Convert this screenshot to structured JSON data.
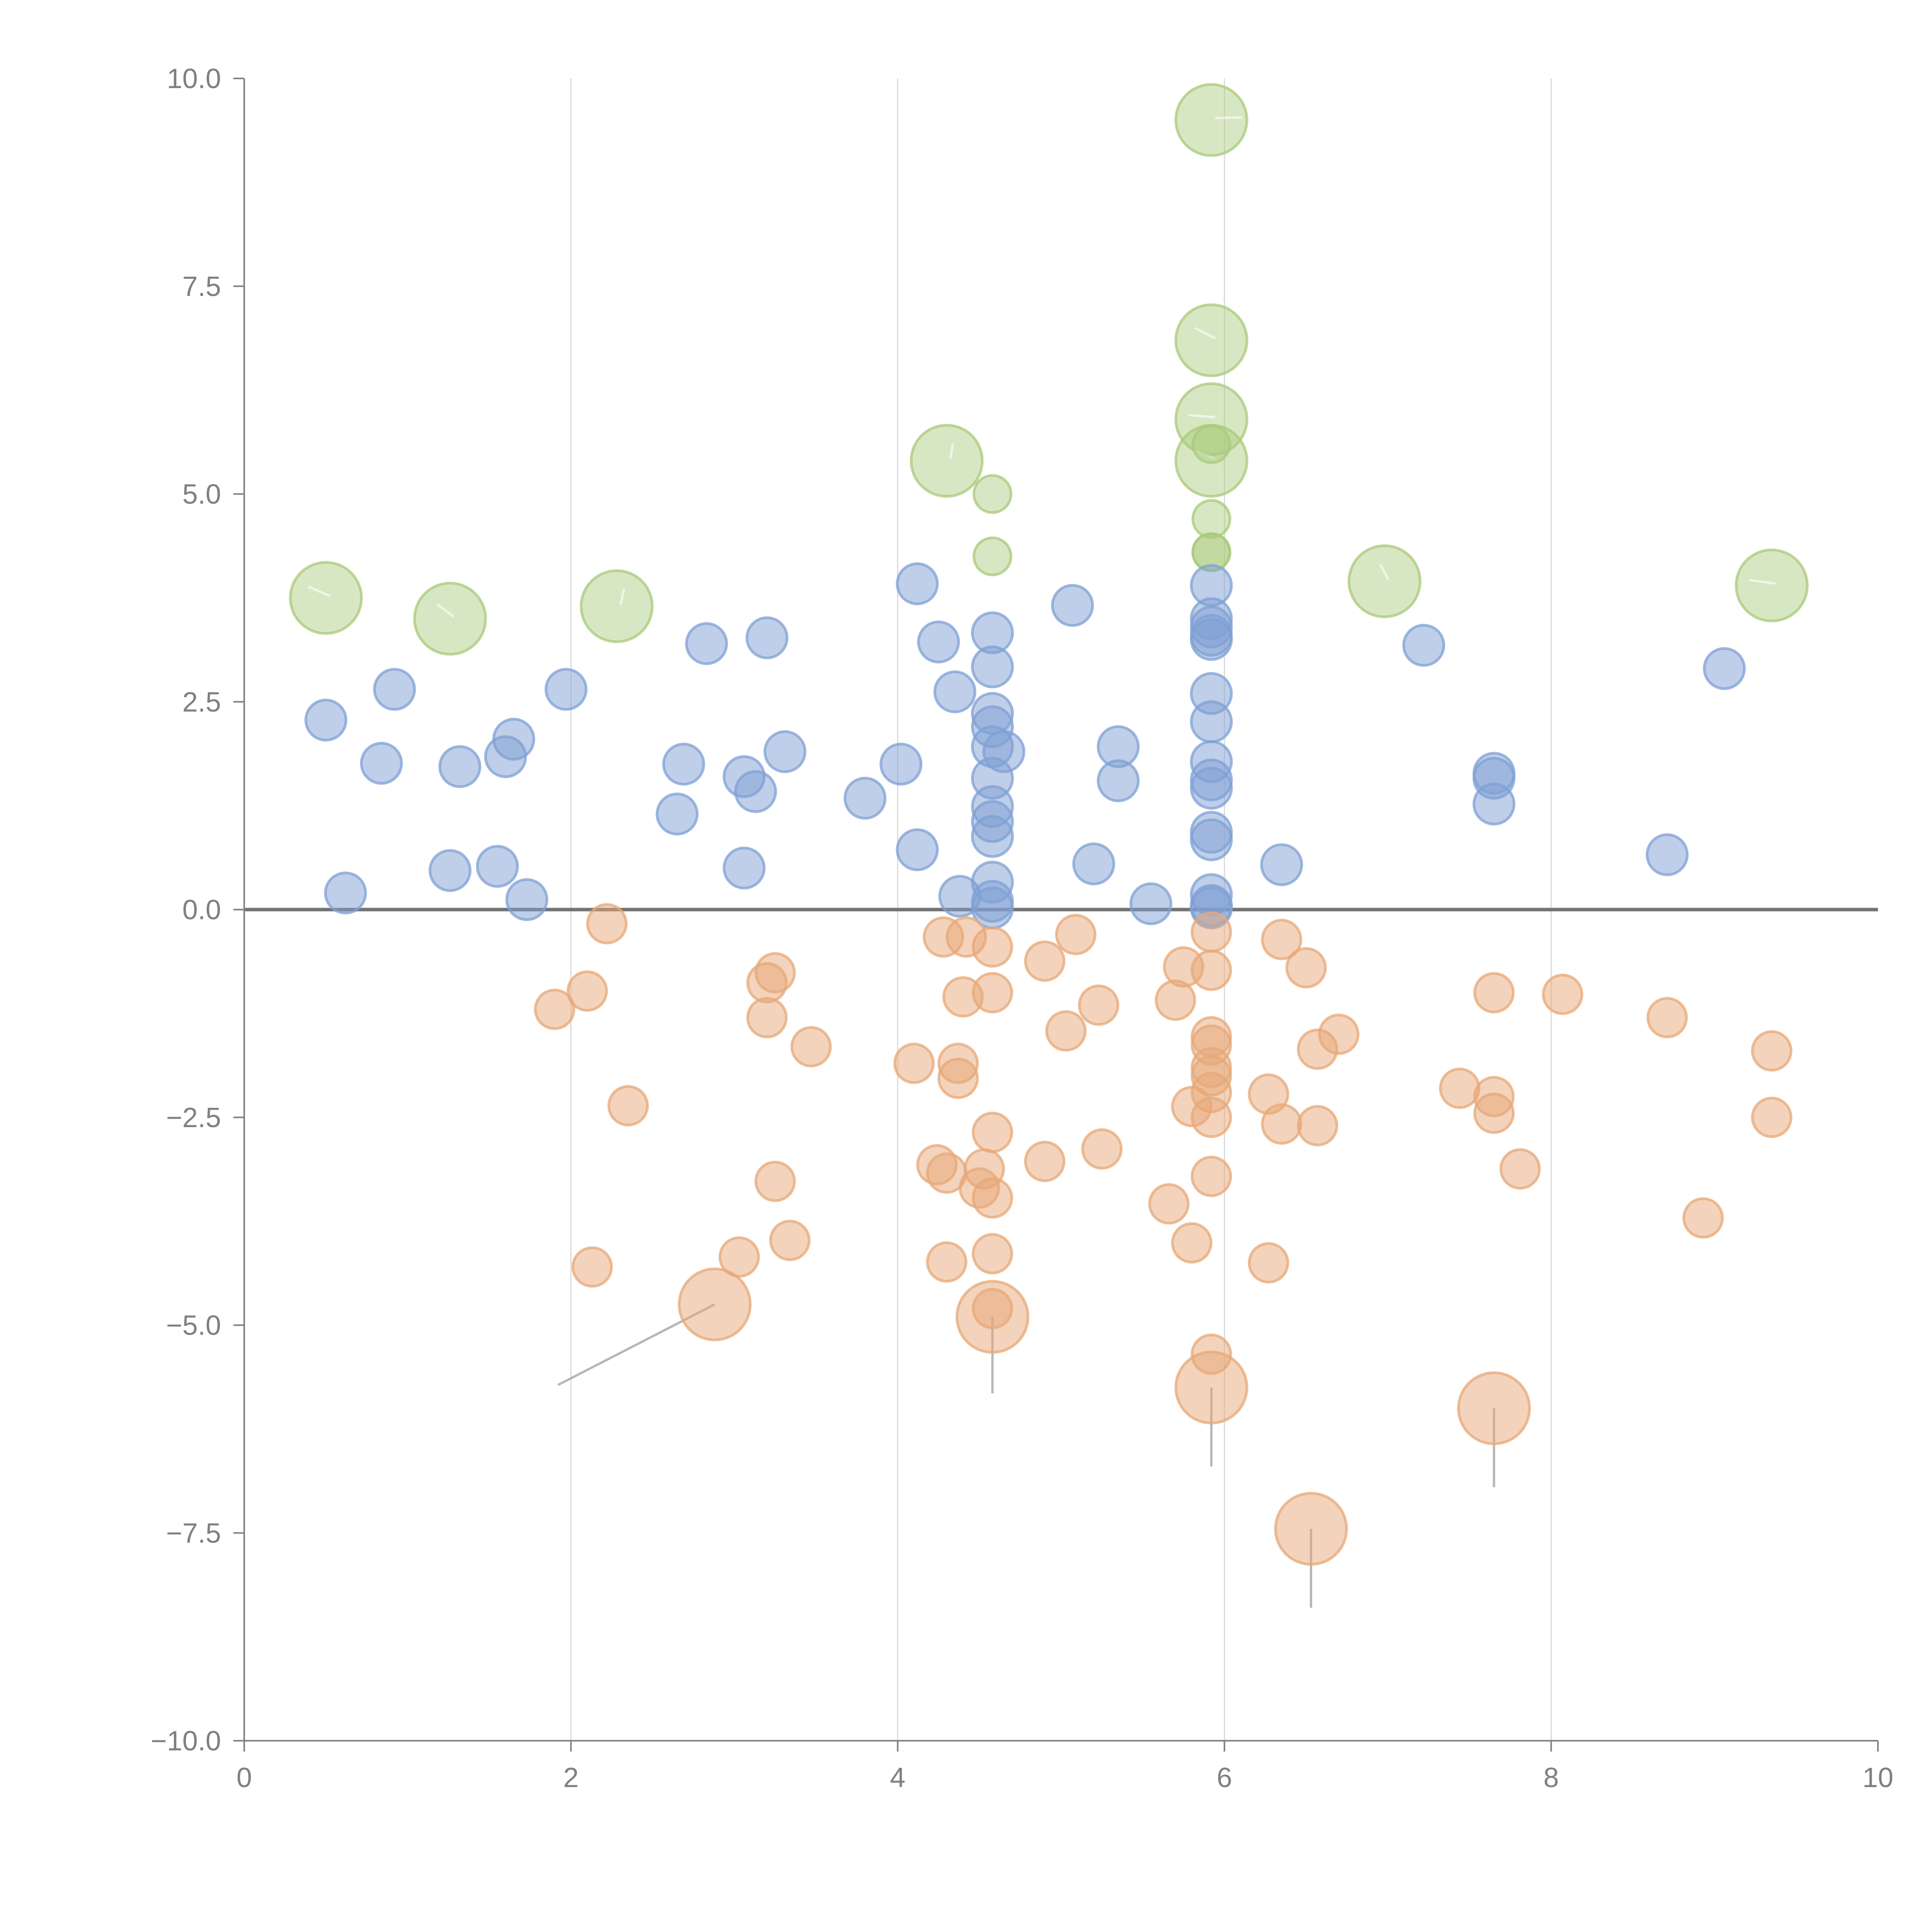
{
  "chart_data": {
    "type": "scatter",
    "title": "",
    "xlabel": "",
    "ylabel": "",
    "xlim": [
      0,
      10
    ],
    "ylim": [
      -10,
      10
    ],
    "x_ticks": [
      "0",
      "2",
      "4",
      "6",
      "8",
      "10"
    ],
    "y_ticks": [
      "10.0",
      "7.5",
      "5.0",
      "2.5",
      "0.0",
      "−2.5",
      "−5.0",
      "−7.5",
      "−10.0"
    ],
    "x_tick_values": [
      0,
      2,
      4,
      6,
      8,
      10
    ],
    "y_tick_values": [
      10,
      7.5,
      5,
      2.5,
      0,
      -2.5,
      -5,
      -7.5,
      -10
    ],
    "grid": "vertical",
    "legend": "none",
    "colors": {
      "green": "#a9c97a",
      "blue": "#7fa0d4",
      "orange": "#e7a877"
    },
    "series": [
      {
        "name": "green",
        "color": "#a9c97a",
        "points": [
          {
            "x": 0.5,
            "y": 3.75,
            "size": "large"
          },
          {
            "x": 1.26,
            "y": 3.5,
            "size": "large"
          },
          {
            "x": 2.28,
            "y": 3.65,
            "size": "large"
          },
          {
            "x": 4.3,
            "y": 5.4,
            "size": "large"
          },
          {
            "x": 5.92,
            "y": 9.5,
            "size": "large"
          },
          {
            "x": 5.92,
            "y": 6.85,
            "size": "large"
          },
          {
            "x": 5.92,
            "y": 5.9,
            "size": "large"
          },
          {
            "x": 5.92,
            "y": 5.4,
            "size": "large"
          },
          {
            "x": 6.98,
            "y": 3.95,
            "size": "large"
          },
          {
            "x": 9.35,
            "y": 3.9,
            "size": "large"
          },
          {
            "x": 4.58,
            "y": 5.0,
            "size": "small"
          },
          {
            "x": 4.58,
            "y": 4.25,
            "size": "small"
          },
          {
            "x": 5.92,
            "y": 5.6,
            "size": "small"
          },
          {
            "x": 5.92,
            "y": 4.7,
            "size": "small"
          },
          {
            "x": 5.92,
            "y": 4.3,
            "size": "small"
          },
          {
            "x": 5.92,
            "y": 4.3,
            "size": "small"
          }
        ]
      },
      {
        "name": "blue",
        "color": "#7fa0d4",
        "points": [
          {
            "x": 0.5,
            "y": 2.28
          },
          {
            "x": 0.62,
            "y": 0.2
          },
          {
            "x": 0.84,
            "y": 1.76
          },
          {
            "x": 0.92,
            "y": 2.65
          },
          {
            "x": 1.26,
            "y": 0.47
          },
          {
            "x": 1.32,
            "y": 1.72
          },
          {
            "x": 1.55,
            "y": 0.52
          },
          {
            "x": 1.6,
            "y": 1.84
          },
          {
            "x": 1.65,
            "y": 2.05
          },
          {
            "x": 1.73,
            "y": 0.12
          },
          {
            "x": 1.97,
            "y": 2.65
          },
          {
            "x": 2.65,
            "y": 1.15
          },
          {
            "x": 2.69,
            "y": 1.75
          },
          {
            "x": 2.83,
            "y": 3.2
          },
          {
            "x": 3.06,
            "y": 1.6
          },
          {
            "x": 3.06,
            "y": 0.5
          },
          {
            "x": 3.13,
            "y": 1.42
          },
          {
            "x": 3.2,
            "y": 3.27
          },
          {
            "x": 3.31,
            "y": 1.9
          },
          {
            "x": 3.8,
            "y": 1.34
          },
          {
            "x": 4.02,
            "y": 1.75
          },
          {
            "x": 4.12,
            "y": 3.92
          },
          {
            "x": 4.12,
            "y": 0.72
          },
          {
            "x": 4.25,
            "y": 3.22
          },
          {
            "x": 4.35,
            "y": 2.62
          },
          {
            "x": 4.38,
            "y": 0.16
          },
          {
            "x": 4.58,
            "y": 3.33
          },
          {
            "x": 4.58,
            "y": 2.92
          },
          {
            "x": 4.58,
            "y": 2.36
          },
          {
            "x": 4.58,
            "y": 2.2
          },
          {
            "x": 4.58,
            "y": 1.96
          },
          {
            "x": 4.65,
            "y": 1.9
          },
          {
            "x": 4.58,
            "y": 1.58
          },
          {
            "x": 4.58,
            "y": 1.24
          },
          {
            "x": 4.58,
            "y": 1.06
          },
          {
            "x": 4.58,
            "y": 0.88
          },
          {
            "x": 4.58,
            "y": 0.33
          },
          {
            "x": 4.58,
            "y": 0.1
          },
          {
            "x": 4.58,
            "y": 0.02
          },
          {
            "x": 5.07,
            "y": 3.66
          },
          {
            "x": 5.2,
            "y": 0.55
          },
          {
            "x": 5.35,
            "y": 1.96
          },
          {
            "x": 5.35,
            "y": 1.55
          },
          {
            "x": 5.55,
            "y": 0.07
          },
          {
            "x": 5.92,
            "y": 3.9
          },
          {
            "x": 5.92,
            "y": 3.5
          },
          {
            "x": 5.92,
            "y": 3.4
          },
          {
            "x": 5.92,
            "y": 3.3
          },
          {
            "x": 5.92,
            "y": 3.25
          },
          {
            "x": 5.92,
            "y": 2.6
          },
          {
            "x": 5.92,
            "y": 2.26
          },
          {
            "x": 5.92,
            "y": 1.78
          },
          {
            "x": 5.92,
            "y": 1.56
          },
          {
            "x": 5.92,
            "y": 1.46
          },
          {
            "x": 5.92,
            "y": 0.93
          },
          {
            "x": 5.92,
            "y": 0.84
          },
          {
            "x": 5.92,
            "y": 0.18
          },
          {
            "x": 5.92,
            "y": 0.05
          },
          {
            "x": 5.92,
            "y": 0.02
          },
          {
            "x": 6.35,
            "y": 0.54
          },
          {
            "x": 7.22,
            "y": 3.18
          },
          {
            "x": 7.65,
            "y": 1.64
          },
          {
            "x": 7.65,
            "y": 1.58
          },
          {
            "x": 7.65,
            "y": 1.27
          },
          {
            "x": 8.71,
            "y": 0.66
          },
          {
            "x": 9.06,
            "y": 2.9
          }
        ]
      },
      {
        "name": "orange",
        "color": "#e7a877",
        "points": [
          {
            "x": 1.9,
            "y": -1.2
          },
          {
            "x": 2.1,
            "y": -0.98
          },
          {
            "x": 2.13,
            "y": -4.3
          },
          {
            "x": 2.22,
            "y": -0.17
          },
          {
            "x": 2.35,
            "y": -2.36
          },
          {
            "x": 3.03,
            "y": -4.18
          },
          {
            "x": 3.2,
            "y": -0.88
          },
          {
            "x": 3.2,
            "y": -1.3
          },
          {
            "x": 3.25,
            "y": -0.76
          },
          {
            "x": 3.25,
            "y": -3.27
          },
          {
            "x": 3.34,
            "y": -3.98
          },
          {
            "x": 3.47,
            "y": -1.65
          },
          {
            "x": 4.1,
            "y": -1.85
          },
          {
            "x": 4.24,
            "y": -3.07
          },
          {
            "x": 4.28,
            "y": -0.33
          },
          {
            "x": 4.3,
            "y": -3.17
          },
          {
            "x": 4.3,
            "y": -4.24
          },
          {
            "x": 4.37,
            "y": -1.85
          },
          {
            "x": 4.37,
            "y": -2.03
          },
          {
            "x": 4.4,
            "y": -1.05
          },
          {
            "x": 4.42,
            "y": -0.33
          },
          {
            "x": 4.5,
            "y": -3.35
          },
          {
            "x": 4.53,
            "y": -3.12
          },
          {
            "x": 4.58,
            "y": -0.45
          },
          {
            "x": 4.58,
            "y": -1.0
          },
          {
            "x": 4.58,
            "y": -2.68
          },
          {
            "x": 4.58,
            "y": -3.47
          },
          {
            "x": 4.58,
            "y": -4.14
          },
          {
            "x": 4.58,
            "y": -4.8
          },
          {
            "x": 4.9,
            "y": -0.62
          },
          {
            "x": 4.9,
            "y": -3.03
          },
          {
            "x": 5.03,
            "y": -1.46
          },
          {
            "x": 5.09,
            "y": -0.3
          },
          {
            "x": 5.23,
            "y": -1.15
          },
          {
            "x": 5.25,
            "y": -2.88
          },
          {
            "x": 5.66,
            "y": -3.54
          },
          {
            "x": 5.7,
            "y": -1.09
          },
          {
            "x": 5.75,
            "y": -0.69
          },
          {
            "x": 5.8,
            "y": -2.37
          },
          {
            "x": 5.8,
            "y": -4.01
          },
          {
            "x": 5.92,
            "y": -0.27
          },
          {
            "x": 5.92,
            "y": -0.73
          },
          {
            "x": 5.92,
            "y": -1.53
          },
          {
            "x": 5.92,
            "y": -1.63
          },
          {
            "x": 5.92,
            "y": -1.9
          },
          {
            "x": 5.92,
            "y": -2.0
          },
          {
            "x": 5.92,
            "y": -2.2
          },
          {
            "x": 5.92,
            "y": -2.5
          },
          {
            "x": 5.92,
            "y": -3.21
          },
          {
            "x": 5.92,
            "y": -5.35
          },
          {
            "x": 6.27,
            "y": -2.22
          },
          {
            "x": 6.27,
            "y": -4.25
          },
          {
            "x": 6.35,
            "y": -0.36
          },
          {
            "x": 6.35,
            "y": -2.58
          },
          {
            "x": 6.5,
            "y": -0.7
          },
          {
            "x": 6.57,
            "y": -1.68
          },
          {
            "x": 6.57,
            "y": -2.6
          },
          {
            "x": 6.7,
            "y": -1.5
          },
          {
            "x": 7.44,
            "y": -2.15
          },
          {
            "x": 7.65,
            "y": -1.0
          },
          {
            "x": 7.65,
            "y": -2.25
          },
          {
            "x": 7.65,
            "y": -2.45
          },
          {
            "x": 7.81,
            "y": -3.12
          },
          {
            "x": 8.07,
            "y": -1.02
          },
          {
            "x": 8.71,
            "y": -1.3
          },
          {
            "x": 8.93,
            "y": -3.71
          },
          {
            "x": 9.35,
            "y": -1.7
          },
          {
            "x": 9.35,
            "y": -2.5
          }
        ],
        "large_points": [
          {
            "x": 2.88,
            "y": -4.75,
            "leader_to": {
              "x": 1.92,
              "y": -5.72
            }
          },
          {
            "x": 4.58,
            "y": -4.9,
            "leader_to": {
              "x": 4.58,
              "y": -5.82
            }
          },
          {
            "x": 5.92,
            "y": -5.75,
            "leader_to": {
              "x": 5.92,
              "y": -6.7
            }
          },
          {
            "x": 7.65,
            "y": -6.0,
            "leader_to": {
              "x": 7.65,
              "y": -6.95
            }
          },
          {
            "x": 6.53,
            "y": -7.45,
            "leader_to": {
              "x": 6.53,
              "y": -8.4
            }
          }
        ]
      }
    ]
  }
}
